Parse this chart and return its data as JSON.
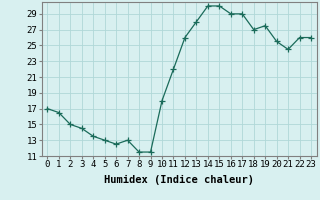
{
  "x": [
    0,
    1,
    2,
    3,
    4,
    5,
    6,
    7,
    8,
    9,
    10,
    11,
    12,
    13,
    14,
    15,
    16,
    17,
    18,
    19,
    20,
    21,
    22,
    23
  ],
  "y": [
    17,
    16.5,
    15,
    14.5,
    13.5,
    13,
    12.5,
    13,
    11.5,
    11.5,
    18,
    22,
    26,
    28,
    30,
    30,
    29,
    29,
    27,
    27.5,
    25.5,
    24.5,
    26,
    26
  ],
  "line_color": "#1a6b5a",
  "marker": "+",
  "marker_size": 4,
  "bg_color": "#d8f0f0",
  "grid_color": "#b0d8d8",
  "xlabel": "Humidex (Indice chaleur)",
  "ylim": [
    11,
    30
  ],
  "yticks": [
    11,
    13,
    15,
    17,
    19,
    21,
    23,
    25,
    27,
    29
  ],
  "xticks": [
    0,
    1,
    2,
    3,
    4,
    5,
    6,
    7,
    8,
    9,
    10,
    11,
    12,
    13,
    14,
    15,
    16,
    17,
    18,
    19,
    20,
    21,
    22,
    23
  ],
  "xlabel_fontsize": 7.5,
  "tick_fontsize": 6.5
}
